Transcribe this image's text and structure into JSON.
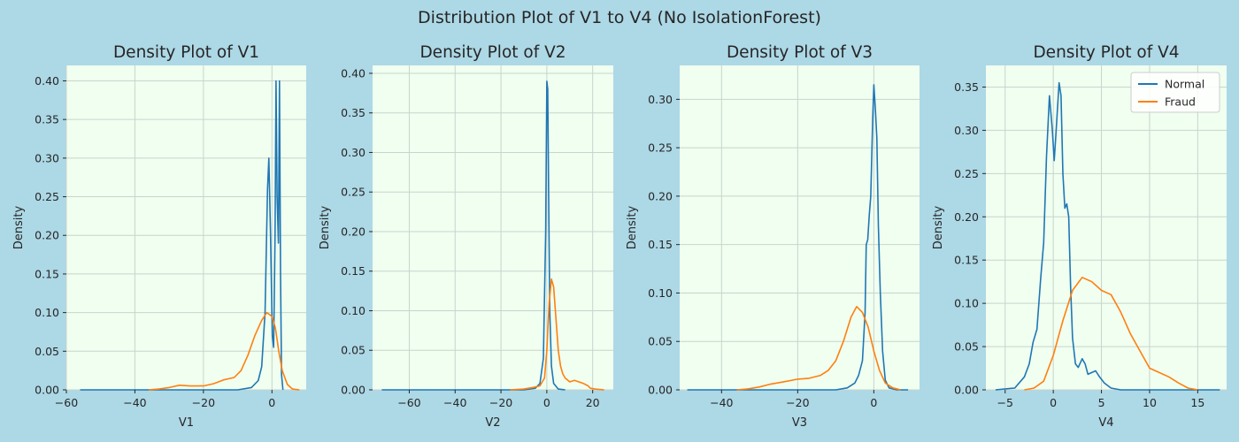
{
  "figure": {
    "suptitle": "Distribution Plot of V1 to V4 (No IsolationForest)",
    "background": "#add8e6",
    "plot_background": "#f0fff0",
    "grid_color": "#c8d4cc"
  },
  "chart_data": [
    {
      "type": "line",
      "title": "Density Plot of V1",
      "xlabel": "V1",
      "ylabel": "Density",
      "xlim": [
        -60,
        10
      ],
      "ylim": [
        0,
        0.42
      ],
      "xticks": [
        -60,
        -40,
        -20,
        0
      ],
      "yticks": [
        0.0,
        0.05,
        0.1,
        0.15,
        0.2,
        0.25,
        0.3,
        0.35,
        0.4
      ],
      "grid": true,
      "legend": false,
      "series": [
        {
          "name": "Normal",
          "color": "#1f77b4",
          "points": [
            [
              -56,
              0
            ],
            [
              -10,
              0
            ],
            [
              -6,
              0.003
            ],
            [
              -4,
              0.012
            ],
            [
              -3,
              0.03
            ],
            [
              -2,
              0.1
            ],
            [
              -1.3,
              0.26
            ],
            [
              -0.9,
              0.3
            ],
            [
              -0.4,
              0.2
            ],
            [
              0.1,
              0.07
            ],
            [
              0.5,
              0.055
            ],
            [
              0.9,
              0.2
            ],
            [
              1.2,
              0.4
            ],
            [
              1.5,
              0.25
            ],
            [
              1.9,
              0.19
            ],
            [
              2.2,
              0.4
            ],
            [
              2.5,
              0.15
            ],
            [
              2.8,
              0.02
            ],
            [
              3.2,
              0
            ]
          ]
        },
        {
          "name": "Fraud",
          "color": "#ff7f0e",
          "points": [
            [
              -36,
              0
            ],
            [
              -33,
              0.001
            ],
            [
              -30,
              0.003
            ],
            [
              -27,
              0.006
            ],
            [
              -24,
              0.005
            ],
            [
              -20,
              0.005
            ],
            [
              -17,
              0.008
            ],
            [
              -14,
              0.013
            ],
            [
              -11,
              0.016
            ],
            [
              -9,
              0.025
            ],
            [
              -7,
              0.045
            ],
            [
              -5,
              0.07
            ],
            [
              -3,
              0.09
            ],
            [
              -1.5,
              0.1
            ],
            [
              0,
              0.095
            ],
            [
              1,
              0.08
            ],
            [
              2,
              0.05
            ],
            [
              3,
              0.025
            ],
            [
              4.5,
              0.007
            ],
            [
              6,
              0.001
            ],
            [
              8,
              0
            ]
          ]
        }
      ]
    },
    {
      "type": "line",
      "title": "Density Plot of V2",
      "xlabel": "V2",
      "ylabel": "Density",
      "xlim": [
        -76,
        29
      ],
      "ylim": [
        0,
        0.41
      ],
      "xticks": [
        -60,
        -40,
        -20,
        0,
        20
      ],
      "yticks": [
        0.0,
        0.05,
        0.1,
        0.15,
        0.2,
        0.25,
        0.3,
        0.35,
        0.4
      ],
      "grid": true,
      "legend": false,
      "series": [
        {
          "name": "Normal",
          "color": "#1f77b4",
          "points": [
            [
              -72,
              0
            ],
            [
              -10,
              0
            ],
            [
              -5,
              0.002
            ],
            [
              -3,
              0.008
            ],
            [
              -1.5,
              0.04
            ],
            [
              -0.5,
              0.2
            ],
            [
              0,
              0.39
            ],
            [
              0.4,
              0.38
            ],
            [
              0.8,
              0.25
            ],
            [
              1.3,
              0.1
            ],
            [
              2,
              0.03
            ],
            [
              3,
              0.008
            ],
            [
              5,
              0.001
            ],
            [
              8,
              0
            ]
          ]
        },
        {
          "name": "Fraud",
          "color": "#ff7f0e",
          "points": [
            [
              -16,
              0
            ],
            [
              -10,
              0.001
            ],
            [
              -6,
              0.003
            ],
            [
              -3,
              0.005
            ],
            [
              -1,
              0.015
            ],
            [
              0,
              0.05
            ],
            [
              1,
              0.11
            ],
            [
              2,
              0.14
            ],
            [
              3,
              0.13
            ],
            [
              4,
              0.09
            ],
            [
              5,
              0.05
            ],
            [
              6,
              0.03
            ],
            [
              7,
              0.02
            ],
            [
              8,
              0.015
            ],
            [
              10,
              0.01
            ],
            [
              12,
              0.012
            ],
            [
              14,
              0.01
            ],
            [
              16,
              0.008
            ],
            [
              18,
              0.005
            ],
            [
              19,
              0.002
            ],
            [
              21,
              0.001
            ],
            [
              25,
              0
            ]
          ]
        }
      ]
    },
    {
      "type": "line",
      "title": "Density Plot of V3",
      "xlabel": "V3",
      "ylabel": "Density",
      "xlim": [
        -51,
        12
      ],
      "ylim": [
        0,
        0.335
      ],
      "xticks": [
        -40,
        -20,
        0
      ],
      "yticks": [
        0.0,
        0.05,
        0.1,
        0.15,
        0.2,
        0.25,
        0.3
      ],
      "grid": true,
      "legend": false,
      "series": [
        {
          "name": "Normal",
          "color": "#1f77b4",
          "points": [
            [
              -49,
              0
            ],
            [
              -10,
              0
            ],
            [
              -7,
              0.002
            ],
            [
              -5,
              0.007
            ],
            [
              -4,
              0.015
            ],
            [
              -3,
              0.03
            ],
            [
              -2.3,
              0.08
            ],
            [
              -2,
              0.15
            ],
            [
              -1.6,
              0.155
            ],
            [
              -1.2,
              0.18
            ],
            [
              -0.8,
              0.2
            ],
            [
              -0.3,
              0.28
            ],
            [
              0,
              0.315
            ],
            [
              0.4,
              0.29
            ],
            [
              0.8,
              0.26
            ],
            [
              1.2,
              0.17
            ],
            [
              1.7,
              0.1
            ],
            [
              2.3,
              0.04
            ],
            [
              3,
              0.01
            ],
            [
              4,
              0.002
            ],
            [
              6,
              0
            ],
            [
              9,
              0
            ]
          ]
        },
        {
          "name": "Fraud",
          "color": "#ff7f0e",
          "points": [
            [
              -36,
              0
            ],
            [
              -33,
              0.001
            ],
            [
              -30,
              0.003
            ],
            [
              -27,
              0.006
            ],
            [
              -24,
              0.008
            ],
            [
              -20,
              0.011
            ],
            [
              -17,
              0.012
            ],
            [
              -14,
              0.015
            ],
            [
              -12,
              0.02
            ],
            [
              -10,
              0.03
            ],
            [
              -8,
              0.05
            ],
            [
              -6,
              0.075
            ],
            [
              -4.5,
              0.086
            ],
            [
              -3,
              0.08
            ],
            [
              -1.5,
              0.065
            ],
            [
              0,
              0.04
            ],
            [
              1.5,
              0.02
            ],
            [
              3,
              0.007
            ],
            [
              5,
              0.002
            ],
            [
              7,
              0
            ]
          ]
        }
      ]
    },
    {
      "type": "line",
      "title": "Density Plot of V4",
      "xlabel": "V4",
      "ylabel": "Density",
      "xlim": [
        -7,
        18
      ],
      "ylim": [
        0,
        0.375
      ],
      "xticks": [
        -5,
        0,
        5,
        10,
        15
      ],
      "yticks": [
        0.0,
        0.05,
        0.1,
        0.15,
        0.2,
        0.25,
        0.3,
        0.35
      ],
      "grid": true,
      "legend": true,
      "legend_position": "top-right",
      "series": [
        {
          "name": "Normal",
          "color": "#1f77b4",
          "points": [
            [
              -6,
              0
            ],
            [
              -4,
              0.002
            ],
            [
              -3,
              0.015
            ],
            [
              -2.5,
              0.03
            ],
            [
              -2.1,
              0.055
            ],
            [
              -1.7,
              0.07
            ],
            [
              -1.3,
              0.13
            ],
            [
              -1,
              0.17
            ],
            [
              -0.7,
              0.27
            ],
            [
              -0.4,
              0.34
            ],
            [
              -0.1,
              0.3
            ],
            [
              0.1,
              0.265
            ],
            [
              0.3,
              0.3
            ],
            [
              0.6,
              0.355
            ],
            [
              0.8,
              0.34
            ],
            [
              1,
              0.25
            ],
            [
              1.2,
              0.21
            ],
            [
              1.4,
              0.215
            ],
            [
              1.6,
              0.2
            ],
            [
              1.8,
              0.12
            ],
            [
              2,
              0.06
            ],
            [
              2.3,
              0.03
            ],
            [
              2.6,
              0.026
            ],
            [
              3,
              0.036
            ],
            [
              3.3,
              0.03
            ],
            [
              3.6,
              0.018
            ],
            [
              4,
              0.02
            ],
            [
              4.4,
              0.022
            ],
            [
              4.8,
              0.015
            ],
            [
              5.3,
              0.008
            ],
            [
              6,
              0.002
            ],
            [
              7,
              0
            ],
            [
              17.3,
              0
            ]
          ]
        },
        {
          "name": "Fraud",
          "color": "#ff7f0e",
          "points": [
            [
              -3,
              0
            ],
            [
              -2,
              0.002
            ],
            [
              -1,
              0.01
            ],
            [
              0,
              0.04
            ],
            [
              1,
              0.08
            ],
            [
              2,
              0.115
            ],
            [
              3,
              0.13
            ],
            [
              4,
              0.125
            ],
            [
              5,
              0.115
            ],
            [
              6,
              0.11
            ],
            [
              7,
              0.09
            ],
            [
              8,
              0.065
            ],
            [
              9,
              0.045
            ],
            [
              10,
              0.025
            ],
            [
              11,
              0.02
            ],
            [
              12,
              0.015
            ],
            [
              13,
              0.008
            ],
            [
              14,
              0.002
            ],
            [
              15,
              0
            ]
          ]
        }
      ]
    }
  ]
}
